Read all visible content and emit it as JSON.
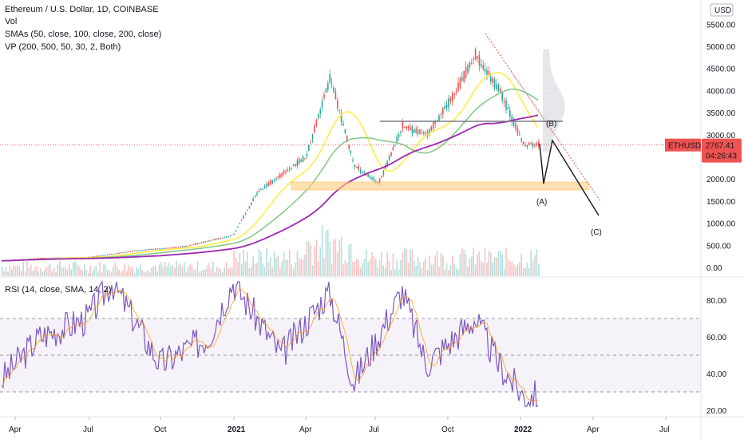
{
  "legend": {
    "main": "Ethereum / U.S. Dollar, 1D, COINBASE",
    "vol": "Vol",
    "smas": "SMAs (50, close, 100, close, 200, close)",
    "vp": "VP (200, 500, 50, 30, 2, Both)",
    "rsi": "RSI (14, close, SMA, 14, 2)"
  },
  "currency_label": "USD",
  "price_tag": {
    "symbol": "ETHUSD",
    "price": "2767.41",
    "countdown": "04:26:43",
    "color": "#ef5350"
  },
  "wave_labels": {
    "a": "(A)",
    "b": "(B)",
    "c": "(C)"
  },
  "colors": {
    "up": "#26a69a",
    "down": "#ef5350",
    "sma50": "#ffeb3b",
    "sma100": "#81c784",
    "sma200": "#9c27b0",
    "rsi": "#7e57c2",
    "rsi_sma": "#ff9800",
    "support": "#ffcc80"
  },
  "chart_data": [
    {
      "type": "line",
      "title": "Ethereum / U.S. Dollar, 1D, COINBASE",
      "y_ticks": [
        "5500.00",
        "5000.00",
        "4500.00",
        "4000.00",
        "3500.00",
        "3000.00",
        "2500.00",
        "2000.00",
        "1500.00",
        "1000.00",
        "500.00",
        "0.00"
      ],
      "ylim": [
        0,
        5600
      ],
      "x_ticks": [
        "Apr",
        "Jul",
        "Oct",
        "2021",
        "Apr",
        "Jul",
        "Oct",
        "2022",
        "Apr",
        "Jul"
      ],
      "series": [
        {
          "name": "",
          "role": "price",
          "x": [
            "2020-03",
            "2020-05",
            "2020-07",
            "2020-09",
            "2020-11",
            "2021-01",
            "2021-02",
            "2021-04",
            "2021-05",
            "2021-06",
            "2021-07",
            "2021-08",
            "2021-09",
            "2021-10",
            "2021-11",
            "2021-12",
            "2022-01"
          ],
          "values": [
            130,
            210,
            230,
            380,
            470,
            730,
            1700,
            2500,
            4300,
            2300,
            1900,
            3200,
            3000,
            3800,
            4800,
            4000,
            2770
          ]
        }
      ],
      "last_price": 2767.41
    },
    {
      "type": "line",
      "title": "RSI (14, close, SMA, 14, 2)",
      "y_ticks": [
        "80.00",
        "60.00",
        "40.00",
        "20.00"
      ],
      "ylim": [
        20,
        90
      ],
      "bands": [
        30,
        50,
        70
      ],
      "series": [
        {
          "name": "",
          "x": [
            "2020-03",
            "2020-05",
            "2020-07",
            "2020-08",
            "2020-10",
            "2020-12",
            "2021-01",
            "2021-03",
            "2021-05",
            "2021-06",
            "2021-08",
            "2021-09",
            "2021-11",
            "2021-12",
            "2022-01"
          ],
          "values": [
            30,
            60,
            70,
            90,
            45,
            60,
            90,
            50,
            85,
            35,
            85,
            45,
            70,
            45,
            28
          ]
        }
      ]
    }
  ]
}
